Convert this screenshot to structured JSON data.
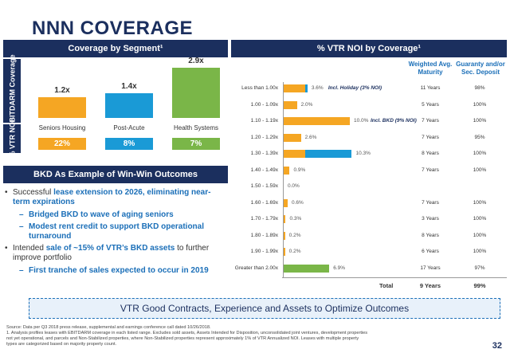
{
  "title": "NNN COVERAGE",
  "left_header": "Coverage by Segment¹",
  "right_header": "% VTR NOI by Coverage¹",
  "side_labels": {
    "coverage": "EBITDARM Coverage",
    "noi": "% VTR NOI"
  },
  "colors": {
    "navy": "#1b2f5e",
    "orange": "#f5a623",
    "blue": "#1a9ad6",
    "green": "#7ab648",
    "accent_text": "#1b6fb8"
  },
  "chart_data": [
    {
      "type": "bar",
      "categories": [
        "Seniors Housing",
        "Post-Acute",
        "Health Systems"
      ],
      "values": [
        1.2,
        1.4,
        2.9
      ],
      "value_labels": [
        "1.2x",
        "1.4x",
        "2.9x"
      ],
      "noi_pct_labels": [
        "22%",
        "8%",
        "7%"
      ],
      "series_colors": [
        "#f5a623",
        "#1a9ad6",
        "#7ab648"
      ],
      "ylim": [
        0,
        3.2
      ]
    },
    {
      "type": "bar",
      "orientation": "horizontal",
      "categories": [
        "Less than 1.00x",
        "1.00 - 1.09x",
        "1.10 - 1.19x",
        "1.20 - 1.29x",
        "1.30 - 1.39x",
        "1.40 - 1.49x",
        "1.50 - 1.59x",
        "1.60 - 1.69x",
        "1.70 - 1.79x",
        "1.80 - 1.89x",
        "1.90 - 1.99x",
        "Greater than 2.00x"
      ],
      "values": [
        3.6,
        2.0,
        10.0,
        2.6,
        10.3,
        0.9,
        0.0,
        0.6,
        0.3,
        0.2,
        0.2,
        6.9
      ],
      "value_labels": [
        "3.6%",
        "2.0%",
        "10.0%",
        "2.6%",
        "10.3%",
        "0.9%",
        "0.0%",
        "0.6%",
        "0.3%",
        "0.2%",
        "0.2%",
        "6.9%"
      ],
      "segments": [
        [
          {
            "v": 3.3,
            "c": "#f5a623"
          },
          {
            "v": 0.3,
            "c": "#1a9ad6"
          }
        ],
        [
          {
            "v": 2.0,
            "c": "#f5a623"
          }
        ],
        [
          {
            "v": 10.0,
            "c": "#f5a623"
          }
        ],
        [
          {
            "v": 2.6,
            "c": "#f5a623"
          }
        ],
        [
          {
            "v": 3.2,
            "c": "#f5a623"
          },
          {
            "v": 7.1,
            "c": "#1a9ad6"
          }
        ],
        [
          {
            "v": 0.9,
            "c": "#f5a623"
          }
        ],
        [],
        [
          {
            "v": 0.6,
            "c": "#f5a623"
          }
        ],
        [
          {
            "v": 0.3,
            "c": "#f5a623"
          }
        ],
        [
          {
            "v": 0.2,
            "c": "#f5a623"
          }
        ],
        [
          {
            "v": 0.2,
            "c": "#f5a623"
          }
        ],
        [
          {
            "v": 6.9,
            "c": "#7ab648"
          }
        ]
      ],
      "notes": [
        "Incl. Holiday (3% NOI)",
        "",
        "Incl. BKD (9% NOI)",
        "",
        "",
        "",
        "",
        "",
        "",
        "",
        "",
        ""
      ],
      "maturity": [
        "11 Years",
        "5 Years",
        "7 Years",
        "7 Years",
        "8 Years",
        "7 Years",
        "",
        "7 Years",
        "3 Years",
        "8 Years",
        "6 Years",
        "17 Years"
      ],
      "deposit": [
        "98%",
        "100%",
        "100%",
        "95%",
        "100%",
        "100%",
        "",
        "100%",
        "100%",
        "100%",
        "100%",
        "97%"
      ],
      "xlim": [
        0,
        12
      ]
    }
  ],
  "table_headers": {
    "maturity": "Weighted Avg. Maturity",
    "deposit": "Guaranty and/or Sec. Deposit"
  },
  "totals": {
    "label": "Total",
    "maturity": "9 Years",
    "deposit": "99%"
  },
  "bkd_header": "BKD As Example of Win-Win Outcomes",
  "bullets": {
    "b1_pre": "Successful ",
    "b1_hl": "lease extension to 2026, eliminating near-term expirations",
    "b1_s1": "Bridged BKD to wave of aging seniors",
    "b1_s2": "Modest rent credit to support BKD operational turnaround",
    "b2_pre": "Intended ",
    "b2_hl": "sale of ~15% of VTR’s BKD assets",
    "b2_post": " to further improve portfolio",
    "b2_s1": "First tranche of sales expected to occur in 2019"
  },
  "banner": "VTR Good Contracts, Experience and Assets to Optimize Outcomes",
  "footnotes": [
    "Source: Data per Q3 2018 press release, supplemental and earnings conference call dated 10/26/2018.",
    "1.  Analysis profiles leases with EBITDARM coverage in each listed range. Excludes sold assets, Assets Intended for Disposition, unconsolidated joint ventures, development properties",
    "     not yet operational, and parcels and Non-Stabilized properties, where Non-Stabilized properties represent approximately 1% of VTR Annualized NOI. Leases with multiple property",
    "     types are categorized based on majority property count."
  ],
  "page_number": "32"
}
